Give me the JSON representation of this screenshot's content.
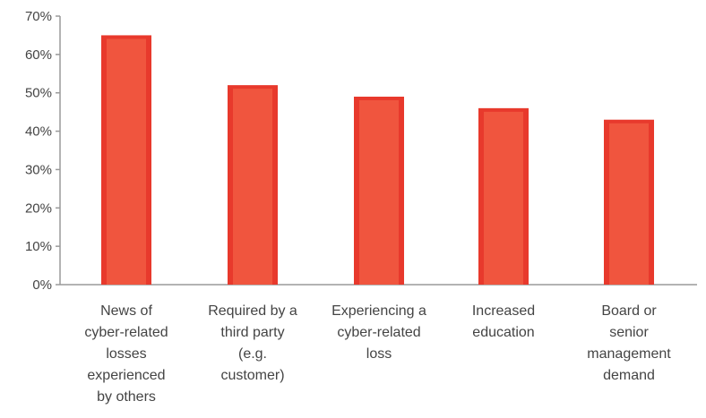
{
  "chart_data": {
    "type": "bar",
    "categories": [
      [
        "News of",
        "cyber-related",
        "losses",
        "experienced",
        "by others"
      ],
      [
        "Required by a",
        "third party",
        "(e.g.",
        "customer)"
      ],
      [
        "Experiencing a",
        "cyber-related",
        "loss"
      ],
      [
        "Increased",
        "education"
      ],
      [
        "Board or",
        "senior",
        "management",
        "demand"
      ]
    ],
    "values": [
      65,
      52,
      49,
      46,
      43
    ],
    "ylim": [
      0,
      70
    ],
    "yticks": [
      "0%",
      "10%",
      "20%",
      "30%",
      "40%",
      "50%",
      "60%",
      "70%"
    ],
    "grid": false,
    "legend": "none",
    "bar_color": "#e8392c",
    "bar_highlight": "#f0553e"
  }
}
